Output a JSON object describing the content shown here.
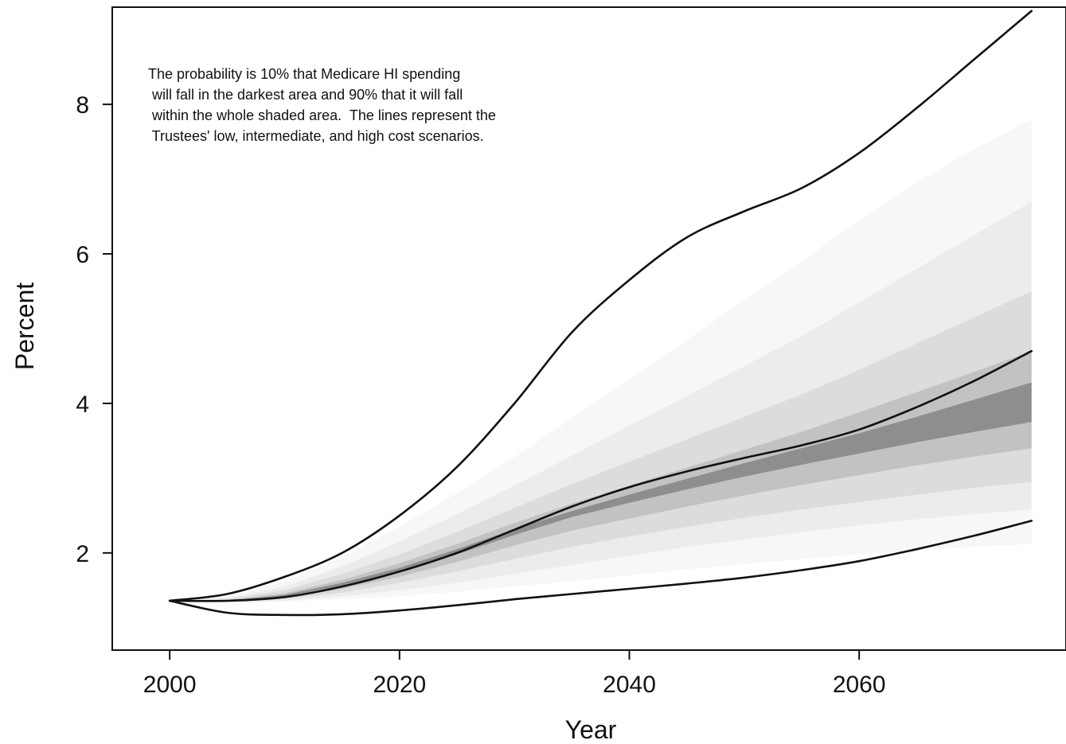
{
  "chart_data": {
    "type": "area",
    "title": "",
    "xlabel": "Year",
    "ylabel": "Percent",
    "xlim": [
      1995,
      2078
    ],
    "ylim": [
      0.7,
      9.3
    ],
    "x_ticks": [
      2000,
      2020,
      2040,
      2060
    ],
    "y_ticks": [
      2,
      4,
      6,
      8
    ],
    "grid": false,
    "annotation": [
      "The probability is 10% that Medicare HI spending",
      " will fall in the darkest area and 90% that it will fall",
      " within the whole shaded area.  The lines represent the",
      " Trustees' low, intermediate, and high cost scenarios."
    ],
    "x": [
      2000,
      2005,
      2010,
      2015,
      2020,
      2025,
      2030,
      2035,
      2040,
      2045,
      2050,
      2055,
      2060,
      2065,
      2070,
      2075
    ],
    "series": [
      {
        "values": [
          1.36,
          1.36,
          1.41,
          1.55,
          1.75,
          2.0,
          2.31,
          2.62,
          2.88,
          3.09,
          3.27,
          3.44,
          3.65,
          3.95,
          4.3,
          4.7
        ]
      },
      {
        "values": [
          1.36,
          1.45,
          1.68,
          2.0,
          2.5,
          3.15,
          4.0,
          4.95,
          5.65,
          6.22,
          6.57,
          6.88,
          7.35,
          7.95,
          8.6,
          9.25
        ]
      },
      {
        "values": [
          1.36,
          1.2,
          1.17,
          1.18,
          1.23,
          1.3,
          1.38,
          1.45,
          1.52,
          1.59,
          1.67,
          1.77,
          1.89,
          2.05,
          2.23,
          2.43
        ]
      }
    ],
    "fan": {
      "x": [
        2000,
        2005,
        2010,
        2015,
        2020,
        2025,
        2030,
        2035,
        2040,
        2045,
        2050,
        2055,
        2060,
        2065,
        2070,
        2075
      ],
      "levels": [
        {
          "lower": [
            1.36,
            1.33,
            1.35,
            1.38,
            1.42,
            1.48,
            1.55,
            1.62,
            1.7,
            1.78,
            1.85,
            1.92,
            1.98,
            2.03,
            2.08,
            2.12
          ],
          "upper": [
            1.36,
            1.42,
            1.62,
            1.95,
            2.35,
            2.8,
            3.28,
            3.8,
            4.32,
            4.85,
            5.38,
            5.9,
            6.45,
            6.95,
            7.4,
            7.8
          ],
          "color": "#f7f7f7"
        },
        {
          "lower": [
            1.36,
            1.33,
            1.36,
            1.42,
            1.5,
            1.6,
            1.72,
            1.84,
            1.96,
            2.08,
            2.18,
            2.28,
            2.37,
            2.45,
            2.52,
            2.58
          ],
          "upper": [
            1.36,
            1.4,
            1.55,
            1.82,
            2.15,
            2.52,
            2.9,
            3.3,
            3.7,
            4.1,
            4.5,
            4.9,
            5.35,
            5.8,
            6.25,
            6.7
          ],
          "color": "#ececec"
        },
        {
          "lower": [
            1.36,
            1.34,
            1.38,
            1.47,
            1.6,
            1.75,
            1.92,
            2.08,
            2.22,
            2.35,
            2.47,
            2.58,
            2.68,
            2.78,
            2.87,
            2.95
          ],
          "upper": [
            1.36,
            1.38,
            1.5,
            1.72,
            1.98,
            2.28,
            2.6,
            2.92,
            3.22,
            3.52,
            3.82,
            4.12,
            4.45,
            4.8,
            5.15,
            5.5
          ],
          "color": "#dcdcdc"
        },
        {
          "lower": [
            1.36,
            1.35,
            1.4,
            1.52,
            1.68,
            1.88,
            2.1,
            2.3,
            2.46,
            2.62,
            2.77,
            2.91,
            3.04,
            3.17,
            3.29,
            3.4
          ],
          "upper": [
            1.36,
            1.37,
            1.46,
            1.64,
            1.86,
            2.12,
            2.4,
            2.66,
            2.9,
            3.14,
            3.38,
            3.62,
            3.88,
            4.15,
            4.42,
            4.7
          ],
          "color": "#c2c2c2"
        },
        {
          "lower": [
            1.36,
            1.35,
            1.42,
            1.56,
            1.75,
            1.98,
            2.24,
            2.48,
            2.67,
            2.85,
            3.02,
            3.18,
            3.33,
            3.48,
            3.62,
            3.75
          ],
          "upper": [
            1.36,
            1.36,
            1.44,
            1.6,
            1.8,
            2.05,
            2.32,
            2.56,
            2.78,
            2.99,
            3.2,
            3.4,
            3.6,
            3.82,
            4.05,
            4.28
          ],
          "color": "#8e8e8e"
        }
      ]
    }
  }
}
